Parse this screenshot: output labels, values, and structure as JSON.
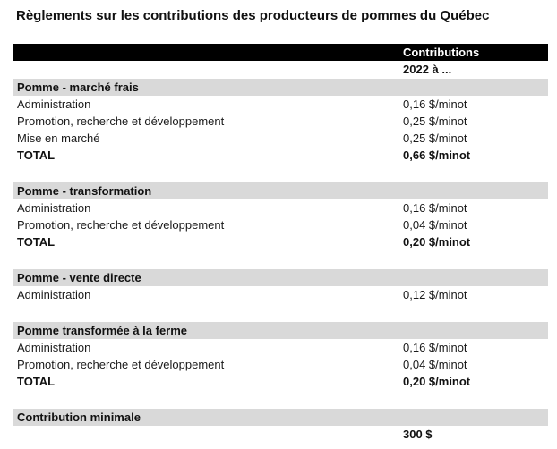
{
  "page_title": "Règlements sur les contributions des producteurs de pommes du Québec",
  "colors": {
    "header_bg": "#000000",
    "header_text": "#ffffff",
    "section_header_bg": "#d9d9d9",
    "body_text": "#1a1a1a"
  },
  "table": {
    "header": {
      "col_value": "Contributions",
      "subheader": "2022 à ..."
    },
    "sections": [
      {
        "title": "Pomme - marché frais",
        "rows": [
          {
            "label": "Administration",
            "value": "0,16 $/minot",
            "bold": false
          },
          {
            "label": "Promotion, recherche et développement",
            "value": "0,25 $/minot",
            "bold": false
          },
          {
            "label": "Mise en marché",
            "value": "0,25 $/minot",
            "bold": false
          },
          {
            "label": "TOTAL",
            "value": "0,66 $/minot",
            "bold": true
          }
        ]
      },
      {
        "title": "Pomme - transformation",
        "rows": [
          {
            "label": "Administration",
            "value": "0,16 $/minot",
            "bold": false
          },
          {
            "label": "Promotion, recherche et développement",
            "value": "0,04 $/minot",
            "bold": false
          },
          {
            "label": "TOTAL",
            "value": "0,20 $/minot",
            "bold": true
          }
        ]
      },
      {
        "title": "Pomme - vente directe",
        "rows": [
          {
            "label": "Administration",
            "value": "0,12 $/minot",
            "bold": false
          }
        ]
      },
      {
        "title": "Pomme transformée à la ferme",
        "rows": [
          {
            "label": "Administration",
            "value": "0,16 $/minot",
            "bold": false
          },
          {
            "label": "Promotion, recherche et développement",
            "value": "0,04 $/minot",
            "bold": false
          },
          {
            "label": "TOTAL",
            "value": "0,20 $/minot",
            "bold": true
          }
        ]
      },
      {
        "title": "Contribution minimale",
        "rows": [
          {
            "label": "",
            "value": "300 $",
            "bold": true
          }
        ]
      }
    ]
  }
}
